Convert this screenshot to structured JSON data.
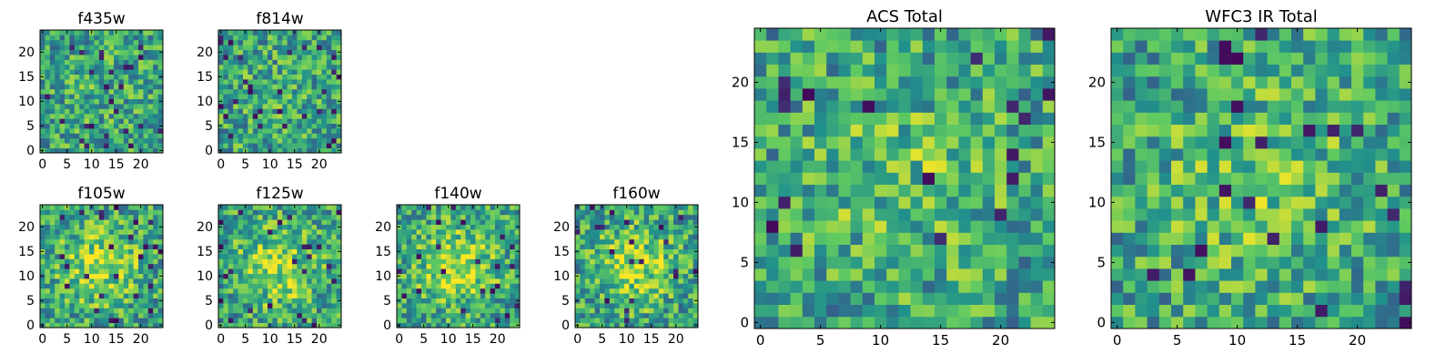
{
  "chart_data": [
    {
      "type": "heatmap",
      "title": "f435w",
      "seed": 435,
      "n": 25,
      "x_ticks": [
        "0",
        "5",
        "10",
        "15",
        "20"
      ],
      "y_ticks": [
        "0",
        "5",
        "10",
        "15",
        "20"
      ],
      "xlim": [
        -0.5,
        24.5
      ],
      "ylim": [
        -0.5,
        24.5
      ],
      "colormap": "viridis",
      "center_bright": 0.05
    },
    {
      "type": "heatmap",
      "title": "f814w",
      "seed": 814,
      "n": 25,
      "x_ticks": [
        "0",
        "5",
        "10",
        "15",
        "20"
      ],
      "y_ticks": [
        "0",
        "5",
        "10",
        "15",
        "20"
      ],
      "xlim": [
        -0.5,
        24.5
      ],
      "ylim": [
        -0.5,
        24.5
      ],
      "colormap": "viridis",
      "center_bright": 0.05
    },
    {
      "type": "heatmap",
      "title": "f105w",
      "seed": 105,
      "n": 25,
      "x_ticks": [
        "0",
        "5",
        "10",
        "15",
        "20"
      ],
      "y_ticks": [
        "0",
        "5",
        "10",
        "15",
        "20"
      ],
      "xlim": [
        -0.5,
        24.5
      ],
      "ylim": [
        -0.5,
        24.5
      ],
      "colormap": "viridis",
      "center_bright": 0.3
    },
    {
      "type": "heatmap",
      "title": "f125w",
      "seed": 125,
      "n": 25,
      "x_ticks": [
        "0",
        "5",
        "10",
        "15",
        "20"
      ],
      "y_ticks": [
        "0",
        "5",
        "10",
        "15",
        "20"
      ],
      "xlim": [
        -0.5,
        24.5
      ],
      "ylim": [
        -0.5,
        24.5
      ],
      "colormap": "viridis",
      "center_bright": 0.3
    },
    {
      "type": "heatmap",
      "title": "f140w",
      "seed": 140,
      "n": 25,
      "x_ticks": [
        "0",
        "5",
        "10",
        "15",
        "20"
      ],
      "y_ticks": [
        "0",
        "5",
        "10",
        "15",
        "20"
      ],
      "xlim": [
        -0.5,
        24.5
      ],
      "ylim": [
        -0.5,
        24.5
      ],
      "colormap": "viridis",
      "center_bright": 0.35
    },
    {
      "type": "heatmap",
      "title": "f160w",
      "seed": 160,
      "n": 25,
      "x_ticks": [
        "0",
        "5",
        "10",
        "15",
        "20"
      ],
      "y_ticks": [
        "0",
        "5",
        "10",
        "15",
        "20"
      ],
      "xlim": [
        -0.5,
        24.5
      ],
      "ylim": [
        -0.5,
        24.5
      ],
      "colormap": "viridis",
      "center_bright": 0.3
    },
    {
      "type": "heatmap",
      "title": "ACS Total",
      "seed": 1001,
      "n": 25,
      "x_ticks": [
        "0",
        "5",
        "10",
        "15",
        "20"
      ],
      "y_ticks": [
        "0",
        "5",
        "10",
        "15",
        "20"
      ],
      "xlim": [
        -0.5,
        24.5
      ],
      "ylim": [
        -0.5,
        24.5
      ],
      "colormap": "viridis",
      "center_bright": 0.15
    },
    {
      "type": "heatmap",
      "title": "WFC3 IR Total",
      "seed": 2002,
      "n": 25,
      "x_ticks": [
        "0",
        "5",
        "10",
        "15",
        "20"
      ],
      "y_ticks": [
        "0",
        "5",
        "10",
        "15",
        "20"
      ],
      "xlim": [
        -0.5,
        24.5
      ],
      "ylim": [
        -0.5,
        24.5
      ],
      "colormap": "viridis",
      "center_bright": 0.2
    }
  ]
}
